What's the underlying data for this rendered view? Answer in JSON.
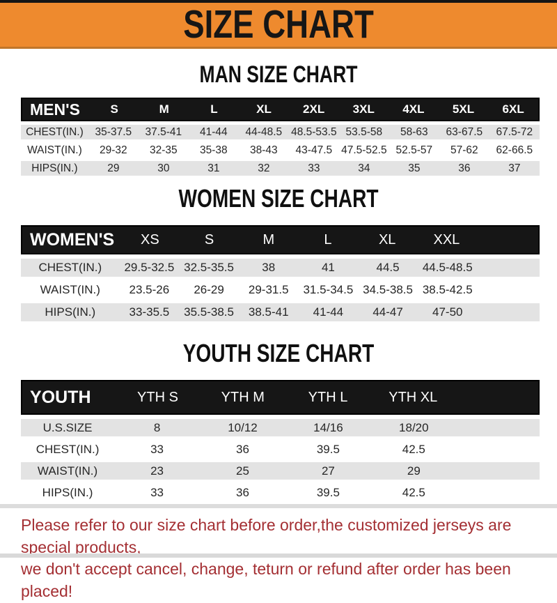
{
  "banner": {
    "title": "SIZE CHART"
  },
  "sections": [
    {
      "heading": "MAN SIZE CHART",
      "table": {
        "header_label": "MEN'S",
        "columns": [
          "S",
          "M",
          "L",
          "XL",
          "2XL",
          "3XL",
          "4XL",
          "5XL",
          "6XL"
        ],
        "rows": [
          {
            "label": "CHEST(IN.)",
            "values": [
              "35-37.5",
              "37.5-41",
              "41-44",
              "44-48.5",
              "48.5-53.5",
              "53.5-58",
              "58-63",
              "63-67.5",
              "67.5-72"
            ]
          },
          {
            "label": "WAIST(IN.)",
            "values": [
              "29-32",
              "32-35",
              "35-38",
              "38-43",
              "43-47.5",
              "47.5-52.5",
              "52.5-57",
              "57-62",
              "62-66.5"
            ]
          },
          {
            "label": "HIPS(IN.)",
            "values": [
              "29",
              "30",
              "31",
              "32",
              "33",
              "34",
              "35",
              "36",
              "37"
            ]
          }
        ]
      }
    },
    {
      "heading": "WOMEN SIZE CHART",
      "table": {
        "header_label": "WOMEN'S",
        "columns": [
          "XS",
          "S",
          "M",
          "L",
          "XL",
          "XXL"
        ],
        "rows": [
          {
            "label": "CHEST(IN.)",
            "values": [
              "29.5-32.5",
              "32.5-35.5",
              "38",
              "41",
              "44.5",
              "44.5-48.5"
            ]
          },
          {
            "label": "WAIST(IN.)",
            "values": [
              "23.5-26",
              "26-29",
              "29-31.5",
              "31.5-34.5",
              "34.5-38.5",
              "38.5-42.5"
            ]
          },
          {
            "label": "HIPS(IN.)",
            "values": [
              "33-35.5",
              "35.5-38.5",
              "38.5-41",
              "41-44",
              "44-47",
              "47-50"
            ]
          }
        ]
      }
    },
    {
      "heading": "YOUTH SIZE CHART",
      "table": {
        "header_label": "YOUTH",
        "columns": [
          "YTH S",
          "YTH M",
          "YTH L",
          "YTH XL"
        ],
        "rows": [
          {
            "label": "U.S.SIZE",
            "values": [
              "8",
              "10/12",
              "14/16",
              "18/20"
            ]
          },
          {
            "label": "CHEST(IN.)",
            "values": [
              "33",
              "36",
              "39.5",
              "42.5"
            ]
          },
          {
            "label": "WAIST(IN.)",
            "values": [
              "23",
              "25",
              "27",
              "29"
            ]
          },
          {
            "label": "HIPS(IN.)",
            "values": [
              "33",
              "36",
              "39.5",
              "42.5"
            ]
          }
        ]
      }
    }
  ],
  "footer": {
    "line1": "Please refer to our size chart before order,the customized jerseys are special products,",
    "line2": "we don't accept cancel, change, teturn or refund after order has been placed!"
  },
  "colors": {
    "orange": "#ee8a2e",
    "bar": "#161616",
    "row-gray": "#e3e3e3",
    "ink": "#262626",
    "red": "#a42f33",
    "strip": "#d9d9d9"
  }
}
